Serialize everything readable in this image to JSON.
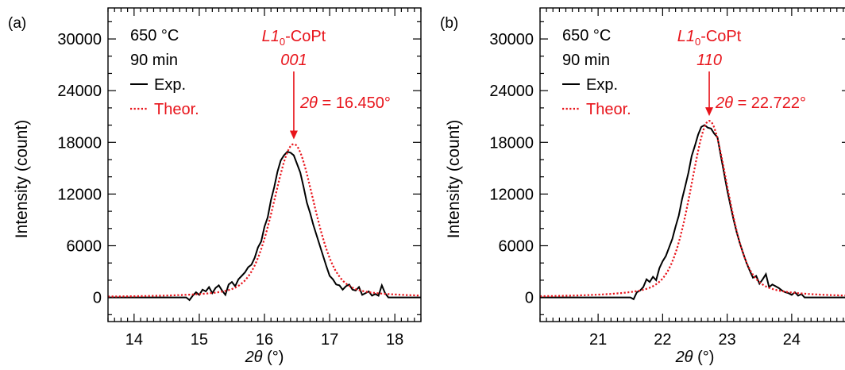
{
  "colors": {
    "experimental": "#000000",
    "theoretical": "#e8141b",
    "annotation": "#e8141b"
  },
  "chart_data": [
    {
      "type": "line",
      "panel_label": "(a)",
      "xlabel_var": "2θ",
      "xlabel_unit": "(°)",
      "ylabel": "Intensity (count)",
      "xlim": [
        13.6,
        18.4
      ],
      "ylim": [
        -2800,
        33600
      ],
      "xticks": [
        14,
        15,
        16,
        17,
        18
      ],
      "yticks": [
        0,
        6000,
        12000,
        18000,
        24000,
        30000
      ],
      "conditions": [
        "650 °C",
        "90 min"
      ],
      "legend": [
        "Exp.",
        "Theor."
      ],
      "annotation": {
        "phase_base": "L1",
        "phase_sub": "0",
        "phase_rest": "-CoPt",
        "reflection": "001",
        "angle_var": "2θ",
        "angle_text": " = 16.450°",
        "peak_x": 16.45
      },
      "series": [
        {
          "name": "Exp.",
          "style": "solid",
          "x": [
            13.6,
            14.8,
            14.85,
            14.9,
            14.95,
            15.0,
            15.05,
            15.1,
            15.15,
            15.2,
            15.25,
            15.3,
            15.35,
            15.4,
            15.45,
            15.5,
            15.55,
            15.6,
            15.65,
            15.7,
            15.75,
            15.8,
            15.85,
            15.9,
            15.95,
            16.0,
            16.05,
            16.1,
            16.15,
            16.2,
            16.25,
            16.3,
            16.35,
            16.4,
            16.45,
            16.5,
            16.55,
            16.6,
            16.65,
            16.7,
            16.75,
            16.8,
            16.85,
            16.9,
            16.95,
            17.0,
            17.05,
            17.1,
            17.15,
            17.2,
            17.25,
            17.3,
            17.35,
            17.4,
            17.45,
            17.5,
            17.55,
            17.6,
            17.65,
            17.7,
            17.75,
            17.8,
            17.85,
            17.9,
            18.4
          ],
          "y": [
            0,
            0,
            -300,
            200,
            600,
            300,
            900,
            700,
            1200,
            500,
            1100,
            1400,
            800,
            300,
            1500,
            1800,
            1300,
            2100,
            2500,
            2900,
            3500,
            3800,
            4600,
            5800,
            6500,
            8200,
            9300,
            11300,
            12800,
            14600,
            15900,
            16500,
            16900,
            16800,
            16500,
            15500,
            14500,
            12800,
            11000,
            9800,
            8400,
            7200,
            6000,
            4800,
            3600,
            2500,
            2100,
            1500,
            1400,
            900,
            1300,
            1500,
            900,
            800,
            1200,
            300,
            500,
            700,
            200,
            400,
            200,
            1400,
            500,
            0,
            0
          ]
        },
        {
          "name": "Theor.",
          "style": "dotted",
          "model": "pseudo-voigt",
          "center": 16.45,
          "amplitude": 17800,
          "fwhm": 0.75,
          "eta": 0.35
        }
      ]
    },
    {
      "type": "line",
      "panel_label": "(b)",
      "xlabel_var": "2θ",
      "xlabel_unit": "(°)",
      "ylabel": "Intensity (count)",
      "xlim": [
        20.1,
        24.9
      ],
      "ylim": [
        -2800,
        33600
      ],
      "xticks": [
        21,
        22,
        23,
        24
      ],
      "yticks": [
        0,
        6000,
        12000,
        18000,
        24000,
        30000
      ],
      "conditions": [
        "650 °C",
        "90 min"
      ],
      "legend": [
        "Exp.",
        "Theor."
      ],
      "annotation": {
        "phase_base": "L1",
        "phase_sub": "0",
        "phase_rest": "-CoPt",
        "reflection": "110",
        "angle_var": "2θ",
        "angle_text": " = 22.722°",
        "peak_x": 22.722
      },
      "series": [
        {
          "name": "Exp.",
          "style": "solid",
          "x": [
            20.1,
            21.5,
            21.55,
            21.6,
            21.65,
            21.7,
            21.75,
            21.8,
            21.85,
            21.9,
            21.95,
            22.0,
            22.05,
            22.1,
            22.15,
            22.2,
            22.25,
            22.3,
            22.35,
            22.4,
            22.45,
            22.5,
            22.55,
            22.6,
            22.65,
            22.7,
            22.75,
            22.8,
            22.85,
            22.9,
            22.95,
            23.0,
            23.05,
            23.1,
            23.15,
            23.2,
            23.25,
            23.3,
            23.35,
            23.4,
            23.45,
            23.5,
            23.55,
            23.6,
            23.65,
            23.7,
            23.75,
            23.8,
            23.85,
            23.9,
            23.95,
            24.0,
            24.05,
            24.1,
            24.15,
            24.2,
            24.9
          ],
          "y": [
            0,
            0,
            -200,
            600,
            800,
            1200,
            2100,
            1800,
            2400,
            2000,
            3400,
            4200,
            4800,
            5800,
            6800,
            8200,
            9500,
            11400,
            12900,
            14500,
            16400,
            17600,
            18900,
            19800,
            20000,
            19700,
            19600,
            19000,
            18600,
            16500,
            14500,
            12500,
            10700,
            9000,
            7500,
            6200,
            5100,
            4000,
            3100,
            2300,
            2500,
            1600,
            2100,
            2700,
            1200,
            1500,
            1300,
            1100,
            800,
            600,
            500,
            300,
            600,
            200,
            400,
            0,
            0
          ]
        },
        {
          "name": "Theor.",
          "style": "dotted",
          "model": "pseudo-voigt",
          "center": 22.722,
          "amplitude": 20500,
          "fwhm": 0.7,
          "eta": 0.4
        }
      ]
    }
  ]
}
